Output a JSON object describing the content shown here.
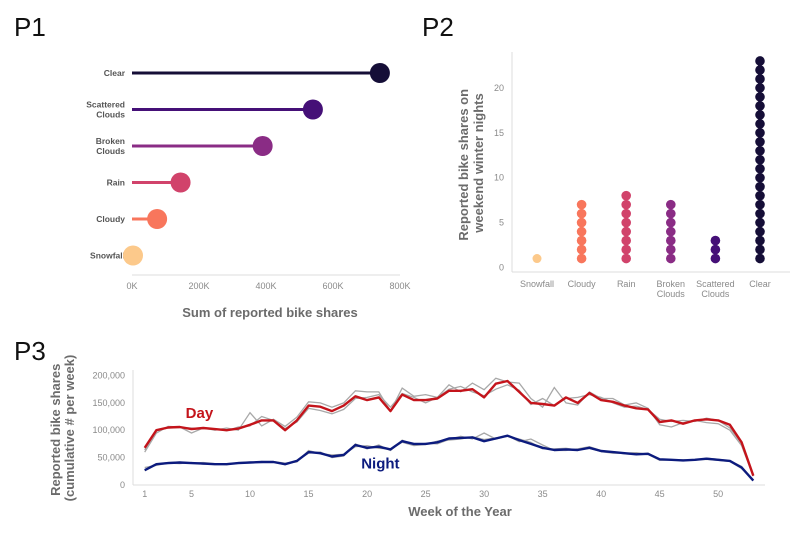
{
  "panels": [
    "P1",
    "P2",
    "P3"
  ],
  "chart_data": [
    {
      "id": "P1",
      "type": "lollipop",
      "categories": [
        "Clear",
        "Scattered Clouds",
        "Broken Clouds",
        "Rain",
        "Cloudy",
        "Snowfall"
      ],
      "values": [
        740000,
        540000,
        390000,
        145000,
        75000,
        3000
      ],
      "colors": [
        "#150e37",
        "#451077",
        "#8a2c85",
        "#d1436b",
        "#f8765c",
        "#fcc98b"
      ],
      "xlabel": "Sum of reported bike shares",
      "xlim": [
        0,
        800000
      ],
      "xticks": [
        0,
        200000,
        400000,
        600000,
        800000
      ],
      "xtick_labels": [
        "0K",
        "200K",
        "400K",
        "600K",
        "800K"
      ]
    },
    {
      "id": "P2",
      "type": "dot",
      "categories": [
        "Snowfall",
        "Cloudy",
        "Rain",
        "Broken Clouds",
        "Scattered Clouds",
        "Clear"
      ],
      "counts": [
        1,
        7,
        8,
        7,
        3,
        23
      ],
      "colors": [
        "#fcc98b",
        "#f8765c",
        "#d1436b",
        "#8a2c85",
        "#451077",
        "#150e37"
      ],
      "ylabel": "Reported bike shares on weekend winter nights",
      "ylabel_lines": [
        "Reported bike shares on",
        "weekend winter nights"
      ],
      "ylim": [
        -0.5,
        24
      ],
      "yticks": [
        0,
        5,
        10,
        15,
        20
      ]
    },
    {
      "id": "P3",
      "type": "line",
      "xlabel": "Week of the Year",
      "ylabel": "Reported bike shares (cumulative # per week)",
      "ylabel_lines": [
        "Reported bike shares",
        "(cumulative # per week)"
      ],
      "xlim": [
        0,
        54
      ],
      "ylim": [
        0,
        210000
      ],
      "xticks": [
        1,
        5,
        10,
        15,
        20,
        25,
        30,
        35,
        40,
        45,
        50
      ],
      "yticks": [
        0,
        50000,
        100000,
        150000,
        200000
      ],
      "ytick_labels": [
        "0",
        "50,000",
        "100,000",
        "150,000",
        "200,000"
      ],
      "x": [
        1,
        2,
        3,
        4,
        5,
        6,
        7,
        8,
        9,
        10,
        11,
        12,
        13,
        14,
        15,
        16,
        17,
        18,
        19,
        20,
        21,
        22,
        23,
        24,
        25,
        26,
        27,
        28,
        29,
        30,
        31,
        32,
        33,
        34,
        35,
        36,
        37,
        38,
        39,
        40,
        41,
        42,
        43,
        44,
        45,
        46,
        47,
        48,
        49,
        50,
        51,
        52,
        53
      ],
      "series": [
        {
          "name": "Day",
          "color": "#c4141b",
          "label_x": 4.5,
          "label_y": 122000,
          "values": [
            68000,
            100000,
            105000,
            106000,
            102000,
            104000,
            102000,
            100000,
            103000,
            110000,
            118000,
            118000,
            100000,
            118000,
            145000,
            143000,
            135000,
            145000,
            162000,
            155000,
            160000,
            135000,
            165000,
            155000,
            155000,
            158000,
            172000,
            172000,
            175000,
            160000,
            185000,
            190000,
            170000,
            150000,
            148000,
            145000,
            160000,
            150000,
            168000,
            155000,
            152000,
            145000,
            140000,
            138000,
            115000,
            118000,
            112000,
            118000,
            120000,
            118000,
            110000,
            78000,
            17000
          ]
        },
        {
          "name": "Night",
          "color": "#0c1b7e",
          "label_x": 19.5,
          "label_y": 30000,
          "values": [
            27000,
            38000,
            40000,
            41000,
            40000,
            39000,
            38000,
            38000,
            40000,
            41000,
            42000,
            42000,
            38000,
            44000,
            60000,
            58000,
            52000,
            55000,
            73000,
            68000,
            70000,
            65000,
            80000,
            75000,
            75000,
            78000,
            85000,
            86000,
            87000,
            80000,
            85000,
            90000,
            82000,
            75000,
            68000,
            64000,
            65000,
            64000,
            68000,
            62000,
            60000,
            58000,
            56000,
            57000,
            47000,
            46000,
            45000,
            46000,
            48000,
            46000,
            44000,
            32000,
            8000
          ]
        }
      ],
      "reference_lines": [
        {
          "color": "#a8a8a8",
          "values": [
            60000,
            95000,
            107000,
            106000,
            95000,
            104000,
            100000,
            104000,
            100000,
            132000,
            108000,
            120000,
            107000,
            124000,
            152000,
            150000,
            142000,
            150000,
            172000,
            170000,
            170000,
            135000,
            177000,
            162000,
            165000,
            160000,
            183000,
            170000,
            186000,
            174000,
            195000,
            188000,
            186000,
            158000,
            142000,
            178000,
            150000,
            146000,
            170000,
            158000,
            158000,
            146000,
            150000,
            140000,
            110000,
            106000,
            114000,
            118000,
            114000,
            112000,
            100000,
            72000,
            16000
          ]
        },
        {
          "color": "#a8a8a8",
          "values": [
            64000,
            100000,
            104000,
            105000,
            104000,
            103000,
            103000,
            99000,
            106000,
            108000,
            125000,
            118000,
            103000,
            115000,
            140000,
            136000,
            130000,
            138000,
            158000,
            160000,
            165000,
            142000,
            167000,
            160000,
            150000,
            160000,
            175000,
            180000,
            170000,
            163000,
            175000,
            183000,
            173000,
            147000,
            158000,
            145000,
            158000,
            160000,
            165000,
            160000,
            150000,
            142000,
            144000,
            138000,
            120000,
            116000,
            118000,
            116000,
            122000,
            118000,
            104000,
            76000,
            18000
          ]
        },
        {
          "color": "#a8a8a8",
          "values": [
            32000,
            36000,
            40000,
            39000,
            41000,
            38000,
            39000,
            37000,
            41000,
            42000,
            41000,
            43000,
            40000,
            42000,
            63000,
            57000,
            55000,
            56000,
            70000,
            72000,
            67000,
            66000,
            78000,
            72000,
            74000,
            80000,
            82000,
            84000,
            88000,
            83000,
            86000,
            89000,
            84000,
            78000,
            66000,
            66000,
            67000,
            64000,
            67000,
            61000,
            58000,
            58000,
            59000,
            56000,
            45000,
            46000,
            45000,
            46000,
            47000,
            45000,
            43000,
            30000,
            9000
          ]
        },
        {
          "color": "#a8a8a8",
          "values": [
            26000,
            38000,
            41000,
            42000,
            40000,
            41000,
            39000,
            39000,
            40000,
            41000,
            43000,
            42000,
            37000,
            45000,
            58000,
            60000,
            50000,
            53000,
            75000,
            66000,
            73000,
            63000,
            82000,
            73000,
            76000,
            75000,
            83000,
            89000,
            84000,
            95000,
            84000,
            90000,
            79000,
            84000,
            73000,
            63000,
            63000,
            66000,
            70000,
            63000,
            60000,
            57000,
            56000,
            58000,
            47000,
            46000,
            46000,
            45000,
            49000,
            47000,
            44000,
            34000,
            8000
          ]
        }
      ]
    }
  ]
}
